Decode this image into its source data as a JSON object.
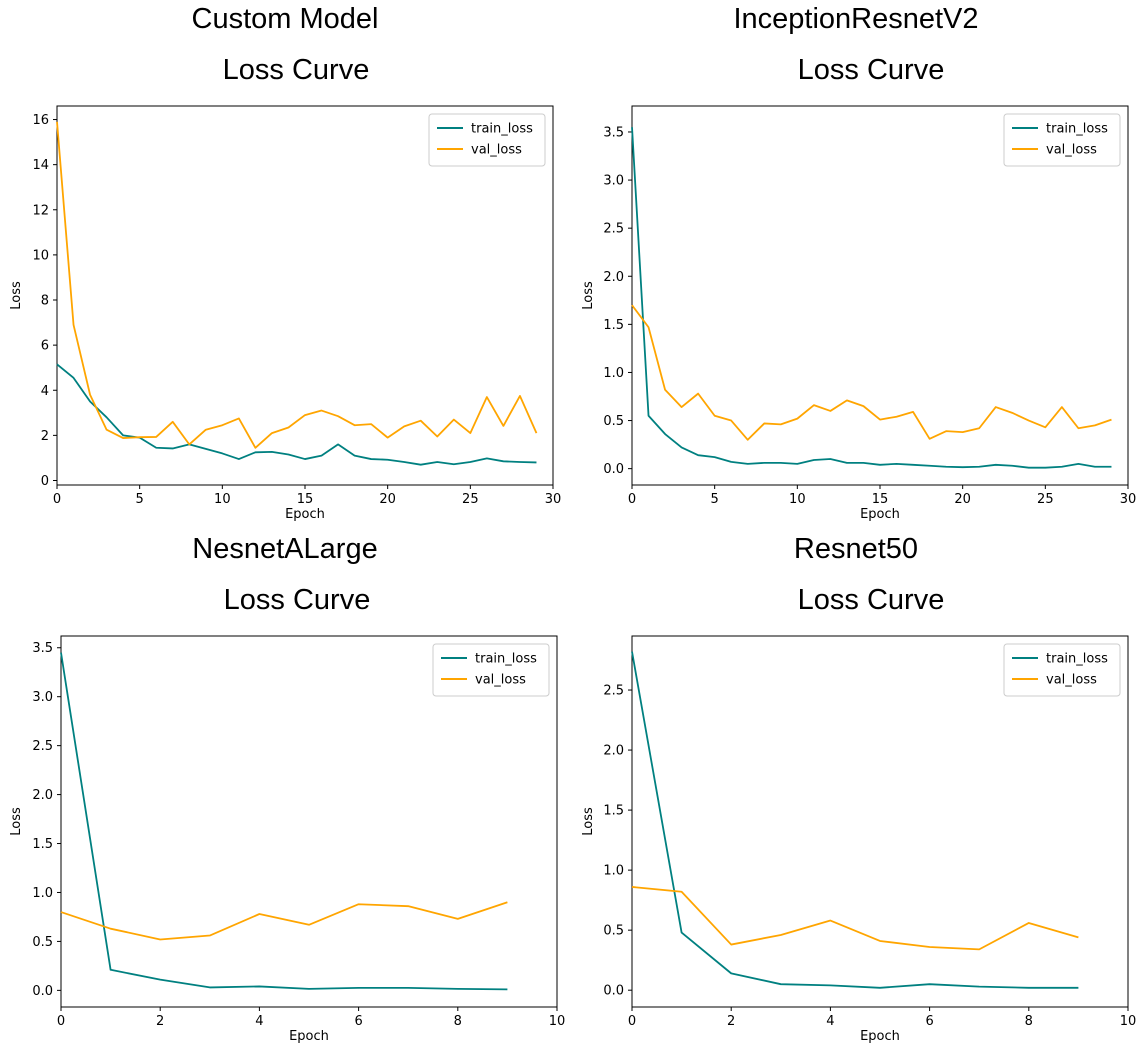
{
  "chart_data": [
    {
      "type": "line",
      "title": "Custom Model",
      "subtitle": "Loss Curve",
      "xlabel": "Epoch",
      "ylabel": "Loss",
      "xlim": [
        0,
        30
      ],
      "ylim": [
        -0.2,
        16.6
      ],
      "xticks": [
        0,
        5,
        10,
        15,
        20,
        25,
        30
      ],
      "yticks": [
        0,
        2,
        4,
        6,
        8,
        10,
        12,
        14,
        16
      ],
      "tick_labels_x": [
        "0",
        "5",
        "10",
        "15",
        "20",
        "25",
        "30"
      ],
      "tick_labels_y": [
        "0",
        "2",
        "4",
        "6",
        "8",
        "10",
        "12",
        "14",
        "16"
      ],
      "legend": "upper-right",
      "grid": false,
      "x": [
        0,
        1,
        2,
        3,
        4,
        5,
        6,
        7,
        8,
        9,
        10,
        11,
        12,
        13,
        14,
        15,
        16,
        17,
        18,
        19,
        20,
        21,
        22,
        23,
        24,
        25,
        26,
        27,
        28,
        29
      ],
      "series": [
        {
          "name": "train_loss",
          "color": "#008080",
          "values": [
            5.15,
            4.55,
            3.5,
            2.8,
            2.0,
            1.9,
            1.45,
            1.42,
            1.6,
            1.4,
            1.2,
            0.95,
            1.25,
            1.27,
            1.15,
            0.95,
            1.1,
            1.6,
            1.1,
            0.95,
            0.92,
            0.82,
            0.7,
            0.82,
            0.72,
            0.82,
            0.98,
            0.85,
            0.82,
            0.8
          ]
        },
        {
          "name": "val_loss",
          "color": "#ffa500",
          "values": [
            15.9,
            6.9,
            3.8,
            2.25,
            1.88,
            1.92,
            1.93,
            2.6,
            1.6,
            2.25,
            2.45,
            2.75,
            1.45,
            2.1,
            2.35,
            2.9,
            3.1,
            2.85,
            2.45,
            2.5,
            1.9,
            2.4,
            2.65,
            1.95,
            2.7,
            2.1,
            3.7,
            2.42,
            3.75,
            2.1
          ]
        }
      ]
    },
    {
      "type": "line",
      "title": "InceptionResnetV2",
      "subtitle": "Loss Curve",
      "xlabel": "Epoch",
      "ylabel": "Loss",
      "xlim": [
        0,
        30
      ],
      "ylim": [
        -0.17,
        3.77
      ],
      "xticks": [
        0,
        5,
        10,
        15,
        20,
        25,
        30
      ],
      "yticks": [
        0.0,
        0.5,
        1.0,
        1.5,
        2.0,
        2.5,
        3.0,
        3.5
      ],
      "tick_labels_x": [
        "0",
        "5",
        "10",
        "15",
        "20",
        "25",
        "30"
      ],
      "tick_labels_y": [
        "0.0",
        "0.5",
        "1.0",
        "1.5",
        "2.0",
        "2.5",
        "3.0",
        "3.5"
      ],
      "legend": "upper-right",
      "grid": false,
      "x": [
        0,
        1,
        2,
        3,
        4,
        5,
        6,
        7,
        8,
        9,
        10,
        11,
        12,
        13,
        14,
        15,
        16,
        17,
        18,
        19,
        20,
        21,
        22,
        23,
        24,
        25,
        26,
        27,
        28,
        29
      ],
      "series": [
        {
          "name": "train_loss",
          "color": "#008080",
          "values": [
            3.55,
            0.55,
            0.36,
            0.22,
            0.14,
            0.12,
            0.07,
            0.05,
            0.06,
            0.06,
            0.05,
            0.09,
            0.1,
            0.06,
            0.06,
            0.04,
            0.05,
            0.04,
            0.03,
            0.02,
            0.015,
            0.02,
            0.04,
            0.03,
            0.01,
            0.01,
            0.02,
            0.05,
            0.02,
            0.02
          ]
        },
        {
          "name": "val_loss",
          "color": "#ffa500",
          "values": [
            1.7,
            1.47,
            0.82,
            0.64,
            0.78,
            0.55,
            0.5,
            0.3,
            0.47,
            0.46,
            0.52,
            0.66,
            0.6,
            0.71,
            0.65,
            0.51,
            0.54,
            0.59,
            0.31,
            0.39,
            0.38,
            0.42,
            0.64,
            0.58,
            0.5,
            0.43,
            0.64,
            0.42,
            0.45,
            0.51
          ]
        }
      ]
    },
    {
      "type": "line",
      "title": "NesnetALarge",
      "subtitle": "Loss Curve",
      "xlabel": "Epoch",
      "ylabel": "Loss",
      "xlim": [
        0,
        10
      ],
      "ylim": [
        -0.17,
        3.62
      ],
      "xticks": [
        0,
        2,
        4,
        6,
        8,
        10
      ],
      "yticks": [
        0.0,
        0.5,
        1.0,
        1.5,
        2.0,
        2.5,
        3.0,
        3.5
      ],
      "tick_labels_x": [
        "0",
        "2",
        "4",
        "6",
        "8",
        "10"
      ],
      "tick_labels_y": [
        "0.0",
        "0.5",
        "1.0",
        "1.5",
        "2.0",
        "2.5",
        "3.0",
        "3.5"
      ],
      "legend": "upper-right",
      "grid": false,
      "x": [
        0,
        1,
        2,
        3,
        4,
        5,
        6,
        7,
        8,
        9
      ],
      "series": [
        {
          "name": "train_loss",
          "color": "#008080",
          "values": [
            3.45,
            0.21,
            0.11,
            0.03,
            0.04,
            0.015,
            0.025,
            0.025,
            0.015,
            0.01
          ]
        },
        {
          "name": "val_loss",
          "color": "#ffa500",
          "values": [
            0.8,
            0.63,
            0.52,
            0.56,
            0.78,
            0.67,
            0.88,
            0.86,
            0.73,
            0.9
          ]
        }
      ]
    },
    {
      "type": "line",
      "title": "Resnet50",
      "subtitle": "Loss Curve",
      "xlabel": "Epoch",
      "ylabel": "Loss",
      "xlim": [
        0,
        10
      ],
      "ylim": [
        -0.14,
        2.95
      ],
      "xticks": [
        0,
        2,
        4,
        6,
        8,
        10
      ],
      "yticks": [
        0.0,
        0.5,
        1.0,
        1.5,
        2.0,
        2.5
      ],
      "tick_labels_x": [
        "0",
        "2",
        "4",
        "6",
        "8",
        "10"
      ],
      "tick_labels_y": [
        "0.0",
        "0.5",
        "1.0",
        "1.5",
        "2.0",
        "2.5"
      ],
      "legend": "upper-right",
      "grid": false,
      "x": [
        0,
        1,
        2,
        3,
        4,
        5,
        6,
        7,
        8,
        9
      ],
      "series": [
        {
          "name": "train_loss",
          "color": "#008080",
          "values": [
            2.82,
            0.48,
            0.14,
            0.05,
            0.04,
            0.02,
            0.05,
            0.03,
            0.02,
            0.02
          ]
        },
        {
          "name": "val_loss",
          "color": "#ffa500",
          "values": [
            0.86,
            0.82,
            0.38,
            0.46,
            0.58,
            0.41,
            0.36,
            0.34,
            0.56,
            0.44
          ]
        }
      ]
    }
  ]
}
